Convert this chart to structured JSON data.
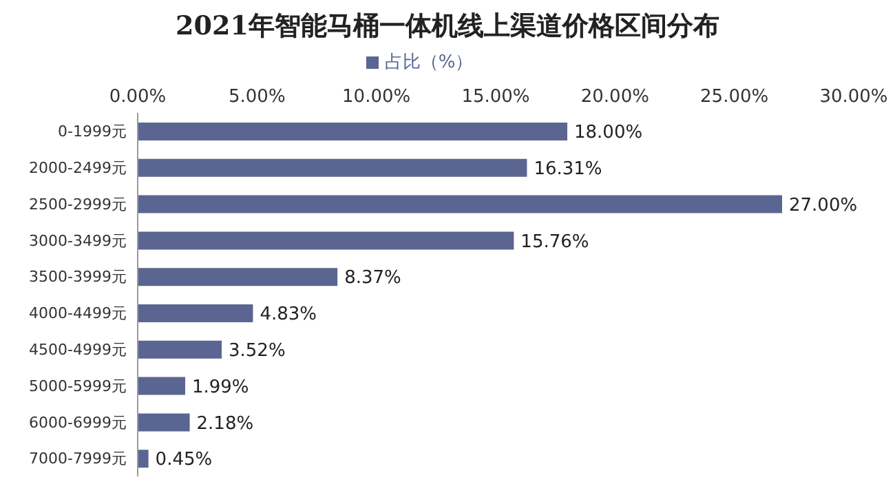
{
  "chart_data": {
    "type": "bar",
    "orientation": "horizontal",
    "title": "2021年智能马桶一体机线上渠道价格区间分布",
    "categories": [
      "0-1999元",
      "2000-2499元",
      "2500-2999元",
      "3000-3499元",
      "3500-3999元",
      "4000-4499元",
      "4500-4999元",
      "5000-5999元",
      "6000-6999元",
      "7000-7999元"
    ],
    "series": [
      {
        "name": "占比（%）",
        "color": "#5b6591",
        "values": [
          18.0,
          16.31,
          27.0,
          15.76,
          8.37,
          4.83,
          3.52,
          1.99,
          2.18,
          0.45
        ],
        "value_labels": [
          "18.00%",
          "16.31%",
          "27.00%",
          "15.76%",
          "8.37%",
          "4.83%",
          "3.52%",
          "1.99%",
          "2.18%",
          "0.45%"
        ]
      }
    ],
    "xlim": [
      0,
      30
    ],
    "xticks": [
      {
        "value": 0,
        "label": "0.00%"
      },
      {
        "value": 5,
        "label": "5.00%"
      },
      {
        "value": 10,
        "label": "10.00%"
      },
      {
        "value": 15,
        "label": "15.00%"
      },
      {
        "value": 20,
        "label": "20.00%"
      },
      {
        "value": 25,
        "label": "25.00%"
      },
      {
        "value": 30,
        "label": "30.00%"
      }
    ],
    "grid": false,
    "legend": "top"
  }
}
